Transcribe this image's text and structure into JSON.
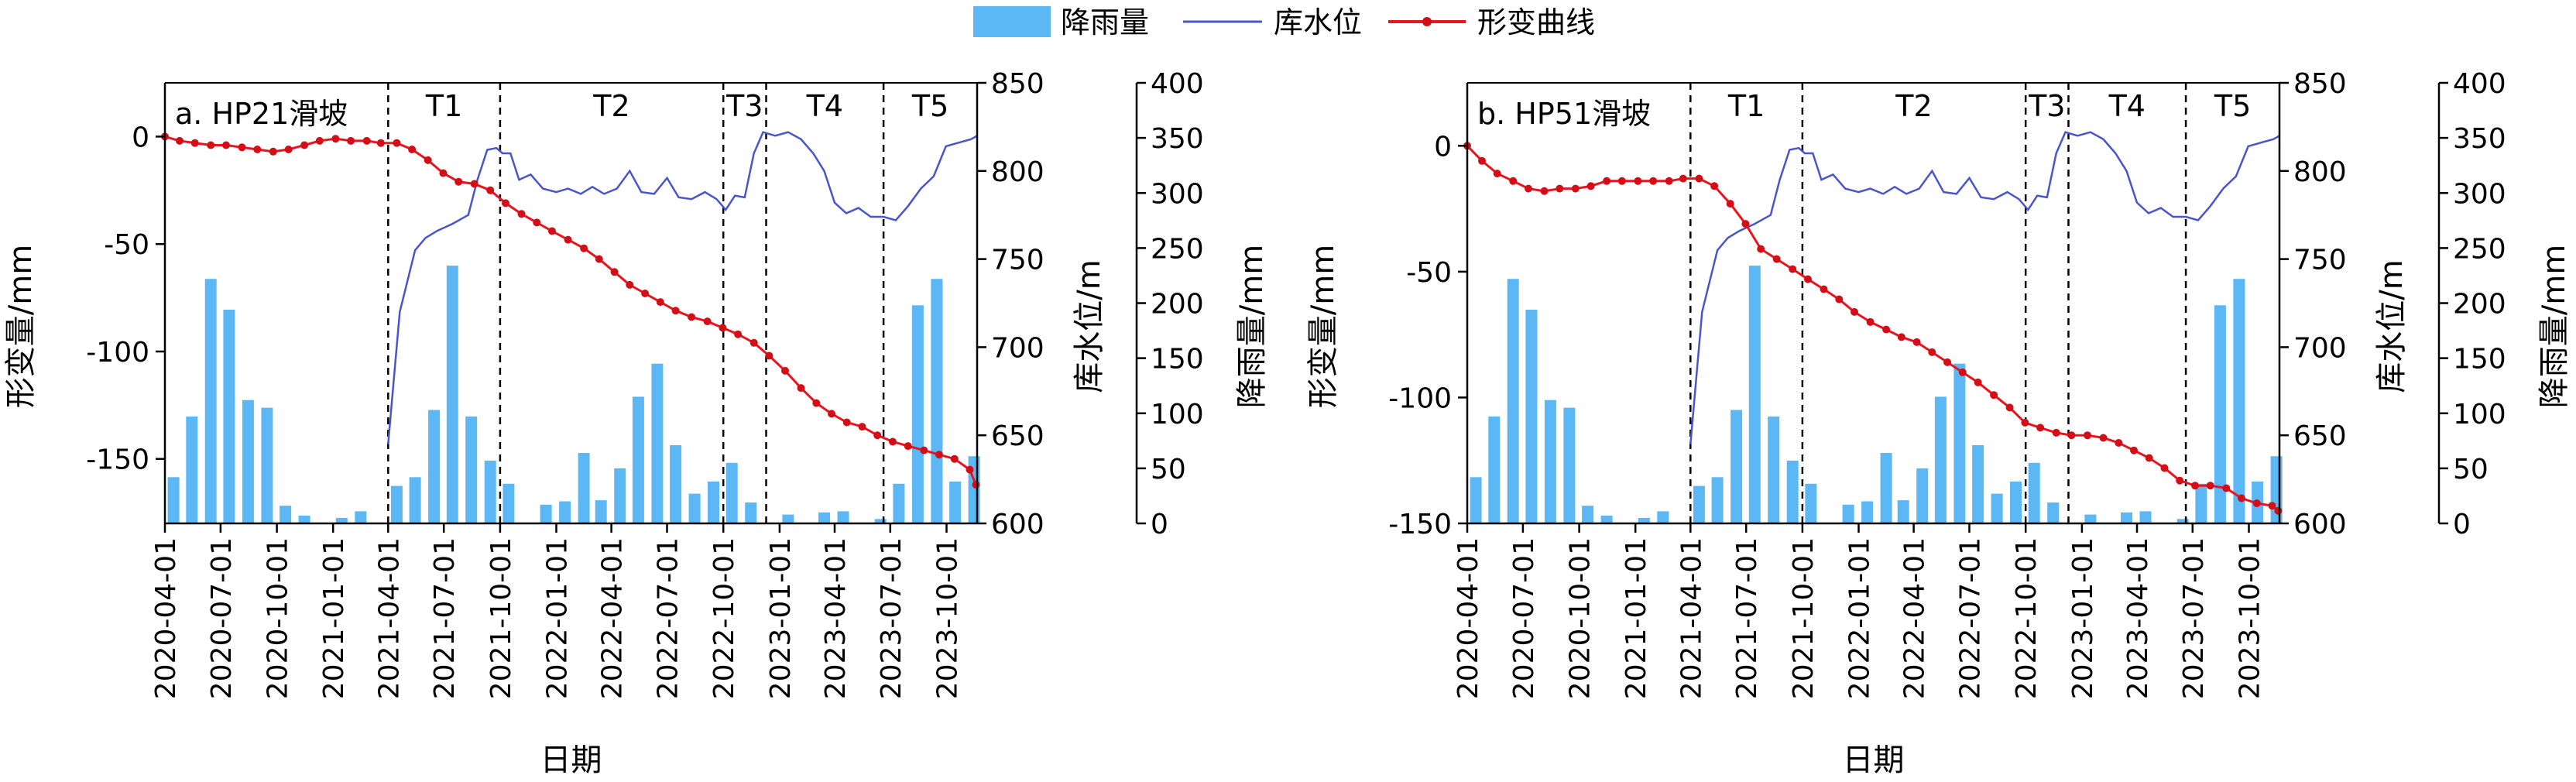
{
  "legend": {
    "rain_label": "降雨量",
    "water_label": "库水位",
    "deform_label": "形变曲线"
  },
  "colors": {
    "rain": "#5BB8F5",
    "water": "#4A56C8",
    "deform": "#E8141E",
    "deform_marker": "#D40E17"
  },
  "chart_data": [
    {
      "type": "bar+line",
      "panel_label": "a. HP21滑坡",
      "xlabel": "日期",
      "ylabel_left": "形变量/mm",
      "ylabel_right1": "库水位/m",
      "ylabel_right2": "降雨量/mm",
      "x_range": [
        "2020-04-01",
        "2023-11-20"
      ],
      "x_ticks": [
        "2020-04-01",
        "2020-07-01",
        "2020-10-01",
        "2021-01-01",
        "2021-04-01",
        "2021-07-01",
        "2021-10-01",
        "2022-01-01",
        "2022-04-01",
        "2022-07-01",
        "2022-10-01",
        "2023-01-01",
        "2023-04-01",
        "2023-07-01",
        "2023-10-01"
      ],
      "ylim_deform": [
        -180,
        25
      ],
      "yticks_deform": [
        0,
        -50,
        -100,
        -150
      ],
      "ylim_water": [
        600,
        850
      ],
      "yticks_water": [
        600,
        650,
        700,
        750,
        800,
        850
      ],
      "ylim_rain": [
        0,
        400
      ],
      "yticks_rain": [
        0,
        50,
        100,
        150,
        200,
        250,
        300,
        350,
        400
      ],
      "periods": [
        {
          "label": "T1",
          "start": "2021-04-01",
          "end": "2021-10-01"
        },
        {
          "label": "T2",
          "start": "2021-10-01",
          "end": "2022-10-01"
        },
        {
          "label": "T3",
          "start": "2022-10-01",
          "end": "2022-12-10"
        },
        {
          "label": "T4",
          "start": "2022-12-10",
          "end": "2023-06-20"
        },
        {
          "label": "T5",
          "start": "2023-06-20",
          "end": "2023-11-20"
        }
      ],
      "dividers": [
        "2021-04-01",
        "2021-10-01",
        "2022-10-01",
        "2022-12-10",
        "2023-06-20"
      ],
      "rainfall": {
        "dates": [
          "2020-04-15",
          "2020-05-15",
          "2020-06-15",
          "2020-07-15",
          "2020-08-15",
          "2020-09-15",
          "2020-10-15",
          "2020-11-15",
          "2020-12-15",
          "2021-01-15",
          "2021-02-15",
          "2021-03-15",
          "2021-04-15",
          "2021-05-15",
          "2021-06-15",
          "2021-07-15",
          "2021-08-15",
          "2021-09-15",
          "2021-10-15",
          "2021-11-15",
          "2021-12-15",
          "2022-01-15",
          "2022-02-15",
          "2022-03-15",
          "2022-04-15",
          "2022-05-15",
          "2022-06-15",
          "2022-07-15",
          "2022-08-15",
          "2022-09-15",
          "2022-10-15",
          "2022-11-15",
          "2022-12-15",
          "2023-01-15",
          "2023-02-15",
          "2023-03-15",
          "2023-04-15",
          "2023-05-15",
          "2023-06-15",
          "2023-07-15",
          "2023-08-15",
          "2023-09-15",
          "2023-10-15",
          "2023-11-15"
        ],
        "values": [
          42,
          97,
          222,
          194,
          112,
          105,
          16,
          7,
          0,
          5,
          11,
          0,
          34,
          42,
          103,
          234,
          97,
          57,
          36,
          0,
          17,
          20,
          64,
          21,
          50,
          115,
          145,
          71,
          27,
          38,
          55,
          19,
          0,
          8,
          0,
          10,
          11,
          0,
          4,
          36,
          198,
          222,
          38,
          61
        ]
      },
      "water_level": {
        "dates": [
          "2021-04-01",
          "2021-04-20",
          "2021-05-15",
          "2021-06-01",
          "2021-06-20",
          "2021-07-15",
          "2021-08-10",
          "2021-08-25",
          "2021-09-10",
          "2021-09-25",
          "2021-10-05",
          "2021-10-18",
          "2021-11-01",
          "2021-11-20",
          "2021-12-10",
          "2022-01-01",
          "2022-01-20",
          "2022-02-10",
          "2022-03-01",
          "2022-03-20",
          "2022-04-10",
          "2022-05-01",
          "2022-05-20",
          "2022-06-10",
          "2022-07-01",
          "2022-07-20",
          "2022-08-10",
          "2022-09-01",
          "2022-09-20",
          "2022-10-05",
          "2022-10-20",
          "2022-11-05",
          "2022-11-20",
          "2022-12-05",
          "2022-12-25",
          "2023-01-15",
          "2023-02-05",
          "2023-02-25",
          "2023-03-15",
          "2023-04-01",
          "2023-04-20",
          "2023-05-10",
          "2023-05-30",
          "2023-06-20",
          "2023-07-10",
          "2023-07-30",
          "2023-08-20",
          "2023-09-10",
          "2023-09-30",
          "2023-10-20",
          "2023-11-10",
          "2023-11-20"
        ],
        "values": [
          645,
          720,
          755,
          762,
          766,
          770,
          775,
          795,
          812,
          813,
          810,
          810,
          795,
          798,
          790,
          788,
          790,
          787,
          791,
          787,
          790,
          800,
          788,
          787,
          796,
          785,
          784,
          788,
          784,
          778,
          786,
          785,
          810,
          822,
          820,
          822,
          818,
          810,
          800,
          782,
          776,
          779,
          774,
          774,
          772,
          780,
          790,
          797,
          814,
          816,
          818,
          820
        ]
      },
      "deformation": {
        "dates": [
          "2020-04-01",
          "2020-04-25",
          "2020-05-20",
          "2020-06-15",
          "2020-07-10",
          "2020-08-05",
          "2020-08-30",
          "2020-09-25",
          "2020-10-20",
          "2020-11-15",
          "2020-12-10",
          "2021-01-05",
          "2021-01-30",
          "2021-02-25",
          "2021-03-20",
          "2021-04-15",
          "2021-05-10",
          "2021-06-05",
          "2021-06-30",
          "2021-07-25",
          "2021-08-20",
          "2021-09-15",
          "2021-10-10",
          "2021-11-05",
          "2021-11-30",
          "2021-12-25",
          "2022-01-20",
          "2022-02-15",
          "2022-03-12",
          "2022-04-06",
          "2022-05-01",
          "2022-05-26",
          "2022-06-20",
          "2022-07-15",
          "2022-08-10",
          "2022-09-05",
          "2022-09-30",
          "2022-10-25",
          "2022-11-20",
          "2022-12-15",
          "2023-01-10",
          "2023-02-05",
          "2023-03-02",
          "2023-03-27",
          "2023-04-21",
          "2023-05-16",
          "2023-06-10",
          "2023-07-05",
          "2023-07-30",
          "2023-08-25",
          "2023-09-19",
          "2023-10-14",
          "2023-11-08",
          "2023-11-18"
        ],
        "values": [
          0,
          -2,
          -3,
          -4,
          -4,
          -5,
          -6,
          -7,
          -6,
          -4,
          -2,
          -1,
          -2,
          -2,
          -3,
          -3,
          -6,
          -11,
          -17,
          -21,
          -22,
          -25,
          -31,
          -36,
          -40,
          -44,
          -48,
          -52,
          -57,
          -63,
          -69,
          -73,
          -77,
          -81,
          -84,
          -86,
          -89,
          -92,
          -96,
          -102,
          -109,
          -117,
          -124,
          -129,
          -133,
          -135,
          -139,
          -142,
          -144,
          -146,
          -148,
          -150,
          -155,
          -162
        ]
      }
    },
    {
      "type": "bar+line",
      "panel_label": "b. HP51滑坡",
      "xlabel": "日期",
      "ylabel_left": "形变量/mm",
      "ylabel_right1": "库水位/m",
      "ylabel_right2": "降雨量/mm",
      "x_range": [
        "2020-04-01",
        "2023-11-20"
      ],
      "x_ticks": [
        "2020-04-01",
        "2020-07-01",
        "2020-10-01",
        "2021-01-01",
        "2021-04-01",
        "2021-07-01",
        "2021-10-01",
        "2022-01-01",
        "2022-04-01",
        "2022-07-01",
        "2022-10-01",
        "2023-01-01",
        "2023-04-01",
        "2023-07-01",
        "2023-10-01"
      ],
      "ylim_deform": [
        -150,
        25
      ],
      "yticks_deform": [
        0,
        -50,
        -100,
        -150
      ],
      "ylim_water": [
        600,
        850
      ],
      "yticks_water": [
        600,
        650,
        700,
        750,
        800,
        850
      ],
      "ylim_rain": [
        0,
        400
      ],
      "yticks_rain": [
        0,
        50,
        100,
        150,
        200,
        250,
        300,
        350,
        400
      ],
      "periods": [
        {
          "label": "T1",
          "start": "2021-04-01",
          "end": "2021-10-01"
        },
        {
          "label": "T2",
          "start": "2021-10-01",
          "end": "2022-10-01"
        },
        {
          "label": "T3",
          "start": "2022-10-01",
          "end": "2022-12-10"
        },
        {
          "label": "T4",
          "start": "2022-12-10",
          "end": "2023-06-20"
        },
        {
          "label": "T5",
          "start": "2023-06-20",
          "end": "2023-11-20"
        }
      ],
      "dividers": [
        "2021-04-01",
        "2021-10-01",
        "2022-10-01",
        "2022-12-10",
        "2023-06-20"
      ],
      "rainfall": {
        "dates": [
          "2020-04-15",
          "2020-05-15",
          "2020-06-15",
          "2020-07-15",
          "2020-08-15",
          "2020-09-15",
          "2020-10-15",
          "2020-11-15",
          "2020-12-15",
          "2021-01-15",
          "2021-02-15",
          "2021-03-15",
          "2021-04-15",
          "2021-05-15",
          "2021-06-15",
          "2021-07-15",
          "2021-08-15",
          "2021-09-15",
          "2021-10-15",
          "2021-11-15",
          "2021-12-15",
          "2022-01-15",
          "2022-02-15",
          "2022-03-15",
          "2022-04-15",
          "2022-05-15",
          "2022-06-15",
          "2022-07-15",
          "2022-08-15",
          "2022-09-15",
          "2022-10-15",
          "2022-11-15",
          "2022-12-15",
          "2023-01-15",
          "2023-02-15",
          "2023-03-15",
          "2023-04-15",
          "2023-05-15",
          "2023-06-15",
          "2023-07-15",
          "2023-08-15",
          "2023-09-15",
          "2023-10-15",
          "2023-11-15"
        ],
        "values": [
          42,
          97,
          222,
          194,
          112,
          105,
          16,
          7,
          0,
          5,
          11,
          0,
          34,
          42,
          103,
          234,
          97,
          57,
          36,
          0,
          17,
          20,
          64,
          21,
          50,
          115,
          145,
          71,
          27,
          38,
          55,
          19,
          0,
          8,
          0,
          10,
          11,
          0,
          4,
          36,
          198,
          222,
          38,
          61
        ]
      },
      "water_level": {
        "dates": [
          "2021-04-01",
          "2021-04-20",
          "2021-05-15",
          "2021-06-01",
          "2021-06-20",
          "2021-07-15",
          "2021-08-10",
          "2021-08-25",
          "2021-09-10",
          "2021-09-25",
          "2021-10-05",
          "2021-10-18",
          "2021-11-01",
          "2021-11-20",
          "2021-12-10",
          "2022-01-01",
          "2022-01-20",
          "2022-02-10",
          "2022-03-01",
          "2022-03-20",
          "2022-04-10",
          "2022-05-01",
          "2022-05-20",
          "2022-06-10",
          "2022-07-01",
          "2022-07-20",
          "2022-08-10",
          "2022-09-01",
          "2022-09-20",
          "2022-10-05",
          "2022-10-20",
          "2022-11-05",
          "2022-11-20",
          "2022-12-05",
          "2022-12-25",
          "2023-01-15",
          "2023-02-05",
          "2023-02-25",
          "2023-03-15",
          "2023-04-01",
          "2023-04-20",
          "2023-05-10",
          "2023-05-30",
          "2023-06-20",
          "2023-07-10",
          "2023-07-30",
          "2023-08-20",
          "2023-09-10",
          "2023-09-30",
          "2023-10-20",
          "2023-11-10",
          "2023-11-20"
        ],
        "values": [
          645,
          720,
          755,
          762,
          766,
          770,
          775,
          795,
          812,
          813,
          810,
          810,
          795,
          798,
          790,
          788,
          790,
          787,
          791,
          787,
          790,
          800,
          788,
          787,
          796,
          785,
          784,
          788,
          784,
          778,
          786,
          785,
          810,
          822,
          820,
          822,
          818,
          810,
          800,
          782,
          776,
          779,
          774,
          774,
          772,
          780,
          790,
          797,
          814,
          816,
          818,
          820
        ]
      },
      "deformation": {
        "dates": [
          "2020-04-01",
          "2020-04-25",
          "2020-05-20",
          "2020-06-15",
          "2020-07-10",
          "2020-08-05",
          "2020-08-30",
          "2020-09-25",
          "2020-10-20",
          "2020-11-15",
          "2020-12-10",
          "2021-01-05",
          "2021-01-30",
          "2021-02-25",
          "2021-03-20",
          "2021-04-15",
          "2021-05-10",
          "2021-06-05",
          "2021-06-30",
          "2021-07-25",
          "2021-08-20",
          "2021-09-15",
          "2021-10-10",
          "2021-11-05",
          "2021-11-30",
          "2021-12-25",
          "2022-01-20",
          "2022-02-15",
          "2022-03-12",
          "2022-04-06",
          "2022-05-01",
          "2022-05-26",
          "2022-06-20",
          "2022-07-15",
          "2022-08-10",
          "2022-09-05",
          "2022-09-30",
          "2022-10-25",
          "2022-11-20",
          "2022-12-15",
          "2023-01-10",
          "2023-02-05",
          "2023-03-02",
          "2023-03-27",
          "2023-04-21",
          "2023-05-16",
          "2023-06-10",
          "2023-07-05",
          "2023-07-30",
          "2023-08-25",
          "2023-09-19",
          "2023-10-14",
          "2023-11-08",
          "2023-11-18"
        ],
        "values": [
          0,
          -6,
          -11,
          -14,
          -17,
          -18,
          -17,
          -17,
          -16,
          -14,
          -14,
          -14,
          -14,
          -14,
          -13,
          -13,
          -16,
          -23,
          -31,
          -41,
          -45,
          -49,
          -53,
          -57,
          -61,
          -66,
          -70,
          -73,
          -76,
          -78,
          -82,
          -86,
          -90,
          -94,
          -99,
          -104,
          -110,
          -112,
          -114,
          -115,
          -115,
          -116,
          -118,
          -121,
          -124,
          -128,
          -133,
          -135,
          -135,
          -136,
          -140,
          -142,
          -143,
          -145
        ]
      }
    }
  ]
}
